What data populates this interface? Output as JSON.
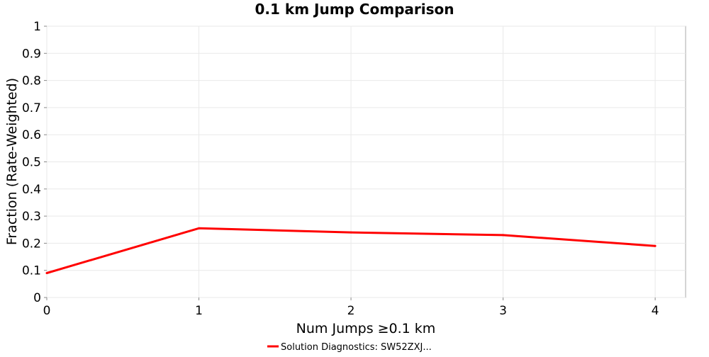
{
  "chart_data": {
    "type": "line",
    "title": "0.1 km Jump Comparison",
    "xlabel": "Num Jumps ≥0.1 km",
    "ylabel": "Fraction (Rate-Weighted)",
    "xlim": [
      0,
      4.2
    ],
    "ylim": [
      0,
      1
    ],
    "x_ticks": [
      0,
      1,
      2,
      3,
      4
    ],
    "y_ticks": [
      0,
      0.1,
      0.2,
      0.3,
      0.4,
      0.5,
      0.6,
      0.7,
      0.8,
      0.9,
      1
    ],
    "grid": true,
    "legend_position": "bottom-center",
    "series": [
      {
        "name": "Solution Diagnostics: SW52ZXJ...",
        "color": "#ff0000",
        "x": [
          0,
          1,
          2,
          3,
          4
        ],
        "y": [
          0.09,
          0.255,
          0.24,
          0.23,
          0.19
        ]
      }
    ]
  }
}
